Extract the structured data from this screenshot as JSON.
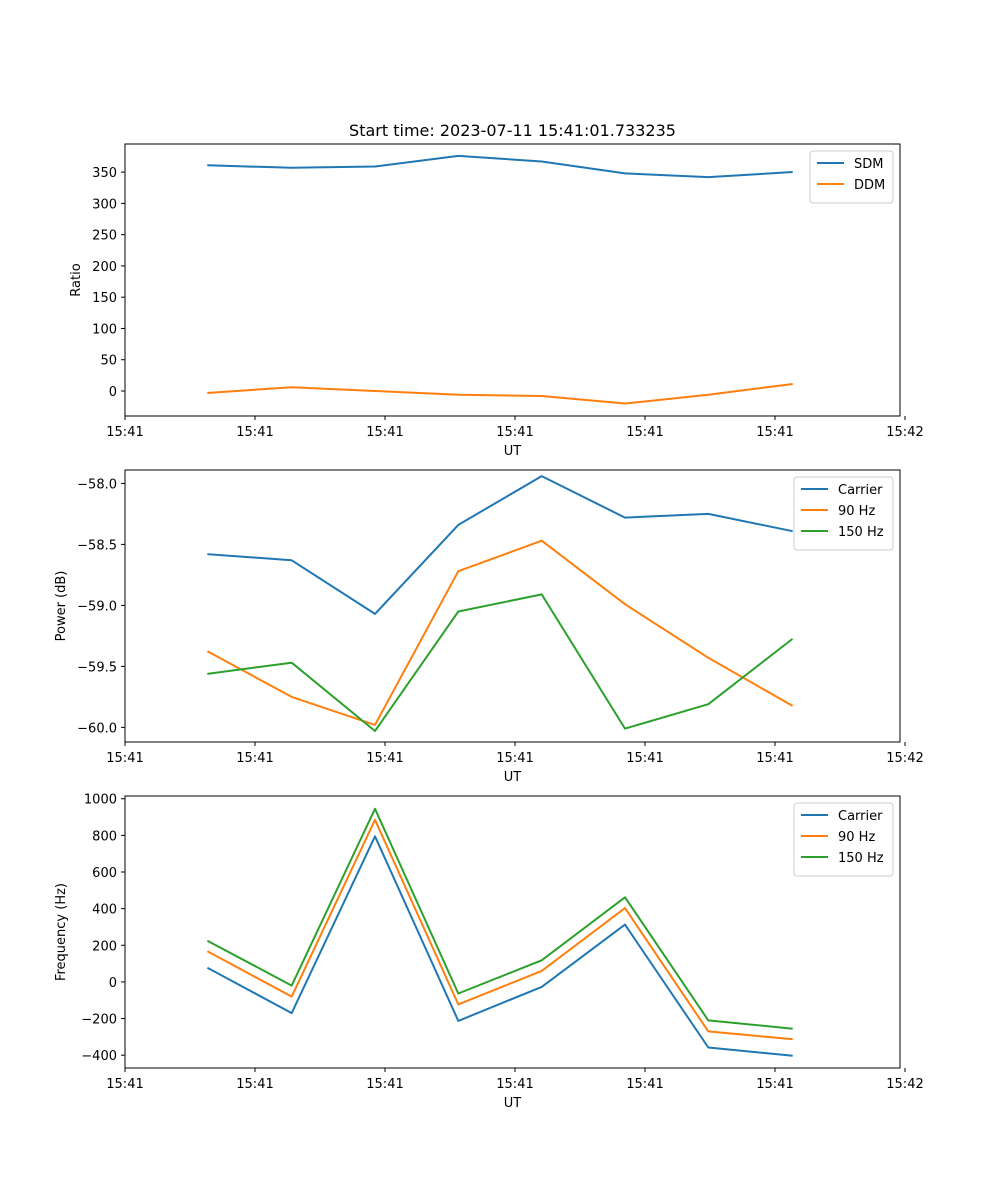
{
  "figure_title": "Start time: 2023-07-11 15:41:01.733235",
  "colors": {
    "blue": "#1f77b4",
    "orange": "#ff7f0e",
    "green": "#2ca02c"
  },
  "chart_data": [
    {
      "type": "line",
      "title": "Start time: 2023-07-11 15:41:01.733235",
      "xlabel": "UT",
      "ylabel": "Ratio",
      "x_index": [
        1,
        2,
        3,
        4,
        5,
        6,
        7,
        8
      ],
      "xlim": [
        0,
        9.3
      ],
      "x_ticks": [
        0,
        1.56,
        3.12,
        4.68,
        6.24,
        7.8,
        9.36
      ],
      "x_tick_labels": [
        "15:41",
        "15:41",
        "15:41",
        "15:41",
        "15:41",
        "15:41",
        "15:42"
      ],
      "ylim": [
        -40,
        395
      ],
      "y_ticks": [
        0,
        50,
        100,
        150,
        200,
        250,
        300,
        350
      ],
      "legend_position": "top-right",
      "series": [
        {
          "name": "SDM",
          "color": "#1f77b4",
          "values": [
            361,
            357,
            359,
            376,
            367,
            348,
            342,
            350
          ]
        },
        {
          "name": "DDM",
          "color": "#ff7f0e",
          "values": [
            -3,
            6,
            0,
            -6,
            -8,
            -20,
            -6,
            11
          ]
        }
      ]
    },
    {
      "type": "line",
      "title": "",
      "xlabel": "UT",
      "ylabel": "Power (dB)",
      "x_index": [
        1,
        2,
        3,
        4,
        5,
        6,
        7,
        8
      ],
      "xlim": [
        0,
        9.3
      ],
      "x_ticks": [
        0,
        1.56,
        3.12,
        4.68,
        6.24,
        7.8,
        9.36
      ],
      "x_tick_labels": [
        "15:41",
        "15:41",
        "15:41",
        "15:41",
        "15:41",
        "15:41",
        "15:42"
      ],
      "ylim": [
        -60.12,
        -57.89
      ],
      "y_ticks": [
        -60.0,
        -59.5,
        -59.0,
        -58.5,
        -58.0
      ],
      "y_tick_labels": [
        "−60.0",
        "−59.5",
        "−59.0",
        "−58.5",
        "−58.0"
      ],
      "legend_position": "top-right",
      "series": [
        {
          "name": "Carrier",
          "color": "#1f77b4",
          "values": [
            -58.58,
            -58.63,
            -59.07,
            -58.34,
            -57.94,
            -58.28,
            -58.25,
            -58.39
          ]
        },
        {
          "name": "90 Hz",
          "color": "#ff7f0e",
          "values": [
            -59.38,
            -59.75,
            -59.98,
            -58.72,
            -58.47,
            -58.99,
            -59.43,
            -59.82
          ]
        },
        {
          "name": "150 Hz",
          "color": "#2ca02c",
          "values": [
            -59.56,
            -59.47,
            -60.03,
            -59.05,
            -58.91,
            -60.01,
            -59.81,
            -59.28
          ]
        }
      ]
    },
    {
      "type": "line",
      "title": "",
      "xlabel": "UT",
      "ylabel": "Frequency (Hz)",
      "x_index": [
        1,
        2,
        3,
        4,
        5,
        6,
        7,
        8
      ],
      "xlim": [
        0,
        9.3
      ],
      "x_ticks": [
        0,
        1.56,
        3.12,
        4.68,
        6.24,
        7.8,
        9.36
      ],
      "x_tick_labels": [
        "15:41",
        "15:41",
        "15:41",
        "15:41",
        "15:41",
        "15:41",
        "15:42"
      ],
      "ylim": [
        -470,
        1015
      ],
      "y_ticks": [
        -400,
        -200,
        0,
        200,
        400,
        600,
        800,
        1000
      ],
      "y_tick_labels": [
        "−400",
        "−200",
        "0",
        "200",
        "400",
        "600",
        "800",
        "1000"
      ],
      "legend_position": "top-right",
      "series": [
        {
          "name": "Carrier",
          "color": "#1f77b4",
          "values": [
            75,
            -170,
            795,
            -213,
            -27,
            313,
            -358,
            -403
          ]
        },
        {
          "name": "90 Hz",
          "color": "#ff7f0e",
          "values": [
            165,
            -80,
            885,
            -123,
            60,
            403,
            -270,
            -313
          ]
        },
        {
          "name": "150 Hz",
          "color": "#2ca02c",
          "values": [
            222,
            -20,
            945,
            -63,
            118,
            462,
            -210,
            -255
          ]
        }
      ]
    }
  ]
}
